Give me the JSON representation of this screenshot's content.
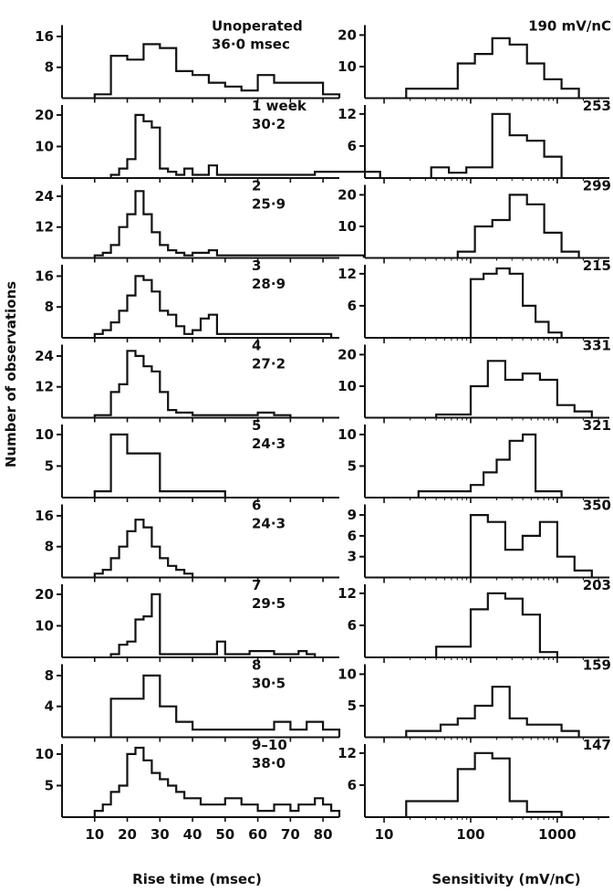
{
  "figure": {
    "ylabel": "Number of observations",
    "left_xlabel": "Rise time (msec)",
    "right_xlabel": "Sensitivity (mV/nC)",
    "left_xticks": [
      "10",
      "20",
      "30",
      "40",
      "50",
      "60",
      "70",
      "80"
    ],
    "right_xticks": [
      "10",
      "100",
      "1000"
    ]
  },
  "chart_data": [
    {
      "type": "histogram",
      "side": "left",
      "panel": 1,
      "annotation": [
        "Unoperated",
        "36·0 msec"
      ],
      "xlabel": "Rise time (msec)",
      "xlim": [
        0,
        85
      ],
      "ylim": [
        0,
        18
      ],
      "yticks": [
        "16",
        "8"
      ],
      "x": [
        10,
        15,
        20,
        25,
        30,
        35,
        40,
        45,
        50,
        55,
        60,
        65,
        70,
        75,
        80
      ],
      "values": [
        1,
        11,
        10,
        14,
        13,
        7,
        6,
        4,
        3,
        2,
        6,
        4,
        4,
        4,
        1
      ]
    },
    {
      "type": "histogram",
      "side": "left",
      "panel": 2,
      "annotation": [
        "1 week",
        "30·2"
      ],
      "xlabel": "Rise time (msec)",
      "xlim": [
        0,
        85
      ],
      "ylim": [
        0,
        22
      ],
      "yticks": [
        "20",
        "10"
      ],
      "x": [
        15,
        17.5,
        20,
        22.5,
        25,
        27.5,
        30,
        32.5,
        35,
        37.5,
        40,
        42.5,
        45,
        47.5,
        50,
        52.5,
        55,
        57.5,
        77.5
      ],
      "values": [
        1,
        3,
        6,
        20,
        18,
        16,
        3,
        2,
        1,
        3,
        1,
        1,
        4,
        1,
        1,
        1,
        1,
        1,
        2
      ]
    },
    {
      "type": "histogram",
      "side": "left",
      "panel": 3,
      "annotation": [
        "2",
        "25·9"
      ],
      "xlabel": "Rise time (msec)",
      "xlim": [
        0,
        85
      ],
      "ylim": [
        0,
        27
      ],
      "yticks": [
        "24",
        "12"
      ],
      "x": [
        10,
        12.5,
        15,
        17.5,
        20,
        22.5,
        25,
        27.5,
        30,
        32.5,
        35,
        37.5,
        40,
        42.5,
        45,
        47.5,
        70
      ],
      "values": [
        1,
        2,
        5,
        12,
        17,
        26,
        17,
        10,
        5,
        3,
        2,
        1,
        2,
        2,
        3,
        1,
        1
      ]
    },
    {
      "type": "histogram",
      "side": "left",
      "panel": 4,
      "annotation": [
        "3",
        "28·9"
      ],
      "xlabel": "Rise time (msec)",
      "xlim": [
        0,
        85
      ],
      "ylim": [
        0,
        18
      ],
      "yticks": [
        "16",
        "8"
      ],
      "x": [
        10,
        12.5,
        15,
        17.5,
        20,
        22.5,
        25,
        27.5,
        30,
        32.5,
        35,
        37.5,
        40,
        42.5,
        45,
        47.5,
        65
      ],
      "values": [
        1,
        2,
        4,
        7,
        11,
        16,
        15,
        12,
        7,
        6,
        3,
        1,
        2,
        5,
        6,
        1,
        1
      ]
    },
    {
      "type": "histogram",
      "side": "left",
      "panel": 5,
      "annotation": [
        "4",
        "27·2"
      ],
      "xlabel": "Rise time (msec)",
      "xlim": [
        0,
        85
      ],
      "ylim": [
        0,
        27
      ],
      "yticks": [
        "24",
        "12"
      ],
      "x": [
        10,
        15,
        17.5,
        20,
        22.5,
        25,
        27.5,
        30,
        32.5,
        35,
        40,
        45,
        50,
        55,
        60,
        65
      ],
      "values": [
        1,
        10,
        13,
        26,
        24,
        20,
        18,
        10,
        3,
        2,
        1,
        1,
        1,
        1,
        2,
        1
      ]
    },
    {
      "type": "histogram",
      "side": "left",
      "panel": 6,
      "annotation": [
        "5",
        "24·3"
      ],
      "xlabel": "Rise time (msec)",
      "xlim": [
        0,
        85
      ],
      "ylim": [
        0,
        11
      ],
      "yticks": [
        "10",
        "5"
      ],
      "x": [
        10,
        15,
        20,
        25,
        30,
        35,
        40,
        45
      ],
      "values": [
        1,
        10,
        7,
        7,
        1,
        1,
        1,
        1
      ]
    },
    {
      "type": "histogram",
      "side": "left",
      "panel": 7,
      "annotation": [
        "6",
        "24·3"
      ],
      "xlabel": "Rise time (msec)",
      "xlim": [
        0,
        85
      ],
      "ylim": [
        0,
        18
      ],
      "yticks": [
        "16",
        "8"
      ],
      "x": [
        10,
        12.5,
        15,
        17.5,
        20,
        22.5,
        25,
        27.5,
        30,
        32.5,
        35,
        37.5
      ],
      "values": [
        1,
        2,
        5,
        8,
        12,
        15,
        13,
        8,
        5,
        3,
        2,
        1
      ]
    },
    {
      "type": "histogram",
      "side": "left",
      "panel": 8,
      "annotation": [
        "7",
        "29·5"
      ],
      "xlabel": "Rise time (msec)",
      "xlim": [
        0,
        85
      ],
      "ylim": [
        0,
        22
      ],
      "yticks": [
        "20",
        "10"
      ],
      "x": [
        15,
        17.5,
        20,
        22.5,
        25,
        27.5,
        30,
        35,
        40,
        45,
        47.5,
        50,
        55,
        57.5,
        60,
        65,
        70,
        72.5,
        75
      ],
      "values": [
        1,
        4,
        5,
        12,
        13,
        20,
        1,
        1,
        1,
        1,
        5,
        1,
        1,
        2,
        2,
        1,
        1,
        2,
        1
      ]
    },
    {
      "type": "histogram",
      "side": "left",
      "panel": 9,
      "annotation": [
        "8",
        "30·5"
      ],
      "xlabel": "Rise time (msec)",
      "xlim": [
        0,
        85
      ],
      "ylim": [
        0,
        9
      ],
      "yticks": [
        "8",
        "4"
      ],
      "x": [
        15,
        20,
        25,
        30,
        35,
        40,
        45,
        50,
        55,
        60,
        65,
        70,
        75,
        80
      ],
      "values": [
        5,
        5,
        8,
        4,
        2,
        1,
        1,
        1,
        1,
        1,
        2,
        1,
        2,
        1
      ]
    },
    {
      "type": "histogram",
      "side": "left",
      "panel": 10,
      "annotation": [
        "9–10",
        "38·0"
      ],
      "xlabel": "Rise time (msec)",
      "xlim": [
        0,
        85
      ],
      "ylim": [
        0,
        11
      ],
      "yticks": [
        "10",
        "5"
      ],
      "x": [
        10,
        12.5,
        15,
        17.5,
        20,
        22.5,
        25,
        27.5,
        30,
        32.5,
        35,
        37.5,
        40,
        42.5,
        45,
        47.5,
        50,
        52.5,
        55,
        57.5,
        60,
        62.5,
        65,
        67.5,
        70,
        72.5,
        75,
        77.5,
        80,
        82.5
      ],
      "values": [
        1,
        2,
        4,
        5,
        10,
        11,
        9,
        7,
        6,
        5,
        4,
        3,
        3,
        2,
        2,
        2,
        3,
        3,
        2,
        2,
        1,
        1,
        2,
        2,
        1,
        2,
        2,
        3,
        2,
        1
      ]
    },
    {
      "type": "histogram",
      "side": "right",
      "panel": 1,
      "annotation": [
        "190 mV/nC"
      ],
      "xlabel": "Sensitivity (mV/nC)",
      "xscale": "log",
      "xlim": [
        6,
        4000
      ],
      "ylim": [
        0,
        22
      ],
      "yticks": [
        "20",
        "10"
      ],
      "x": [
        18,
        71,
        112,
        178,
        282,
        447,
        708,
        1122
      ],
      "values": [
        3,
        11,
        14,
        19,
        17,
        11,
        6,
        3
      ]
    },
    {
      "type": "histogram",
      "side": "right",
      "panel": 2,
      "annotation": [
        "253"
      ],
      "xlabel": "Sensitivity (mV/nC)",
      "xscale": "log",
      "xlim": [
        6,
        4000
      ],
      "ylim": [
        0,
        13
      ],
      "yticks": [
        "12",
        "6"
      ],
      "x": [
        35,
        56,
        89,
        178,
        282,
        447,
        708
      ],
      "values": [
        2,
        1,
        2,
        12,
        8,
        7,
        4
      ]
    },
    {
      "type": "histogram",
      "side": "right",
      "panel": 3,
      "annotation": [
        "299"
      ],
      "xlabel": "Sensitivity (mV/nC)",
      "xscale": "log",
      "xlim": [
        6,
        4000
      ],
      "ylim": [
        0,
        22
      ],
      "yticks": [
        "20",
        "10"
      ],
      "x": [
        71,
        112,
        178,
        282,
        447,
        708,
        1122
      ],
      "values": [
        2,
        10,
        12,
        20,
        17,
        8,
        2
      ]
    },
    {
      "type": "histogram",
      "side": "right",
      "panel": 4,
      "annotation": [
        "215"
      ],
      "xlabel": "Sensitivity (mV/nC)",
      "xscale": "log",
      "xlim": [
        6,
        4000
      ],
      "ylim": [
        0,
        13
      ],
      "yticks": [
        "12",
        "6"
      ],
      "x": [
        100,
        141,
        200,
        282,
        400,
        562,
        794
      ],
      "values": [
        11,
        12,
        13,
        12,
        6,
        3,
        1
      ]
    },
    {
      "type": "histogram",
      "side": "right",
      "panel": 5,
      "annotation": [
        "331"
      ],
      "xlabel": "Sensitivity (mV/nC)",
      "xscale": "log",
      "xlim": [
        6,
        4000
      ],
      "ylim": [
        0,
        22
      ],
      "yticks": [
        "20",
        "10"
      ],
      "x": [
        40,
        63,
        100,
        158,
        251,
        398,
        631,
        1000,
        1585
      ],
      "values": [
        1,
        1,
        10,
        18,
        12,
        14,
        12,
        4,
        2
      ]
    },
    {
      "type": "histogram",
      "side": "right",
      "panel": 6,
      "annotation": [
        "321"
      ],
      "xlabel": "Sensitivity (mV/nC)",
      "xscale": "log",
      "xlim": [
        6,
        4000
      ],
      "ylim": [
        0,
        11
      ],
      "yticks": [
        "10",
        "5"
      ],
      "x": [
        25,
        40,
        100,
        141,
        200,
        282,
        400,
        562,
        794
      ],
      "values": [
        1,
        1,
        2,
        4,
        6,
        9,
        10,
        1,
        1
      ]
    },
    {
      "type": "histogram",
      "side": "right",
      "panel": 7,
      "annotation": [
        "350"
      ],
      "xlabel": "Sensitivity (mV/nC)",
      "xscale": "log",
      "xlim": [
        6,
        4000
      ],
      "ylim": [
        0,
        10
      ],
      "yticks": [
        "9",
        "6",
        "3"
      ],
      "x": [
        100,
        158,
        251,
        398,
        631,
        1000,
        1585
      ],
      "values": [
        9,
        8,
        4,
        6,
        8,
        3,
        1
      ]
    },
    {
      "type": "histogram",
      "side": "right",
      "panel": 8,
      "annotation": [
        "203"
      ],
      "xlabel": "Sensitivity (mV/nC)",
      "xscale": "log",
      "xlim": [
        6,
        4000
      ],
      "ylim": [
        0,
        13
      ],
      "yticks": [
        "12",
        "6"
      ],
      "x": [
        40,
        100,
        158,
        251,
        398,
        631
      ],
      "values": [
        2,
        9,
        12,
        11,
        8,
        1
      ]
    },
    {
      "type": "histogram",
      "side": "right",
      "panel": 9,
      "annotation": [
        "159"
      ],
      "xlabel": "Sensitivity (mV/nC)",
      "xscale": "log",
      "xlim": [
        6,
        4000
      ],
      "ylim": [
        0,
        11
      ],
      "yticks": [
        "10",
        "5"
      ],
      "x": [
        18,
        28,
        45,
        71,
        112,
        178,
        282,
        447,
        708,
        1122
      ],
      "values": [
        1,
        1,
        2,
        3,
        5,
        8,
        3,
        2,
        2,
        1
      ]
    },
    {
      "type": "histogram",
      "side": "right",
      "panel": 10,
      "annotation": [
        "147"
      ],
      "xlabel": "Sensitivity (mV/nC)",
      "xscale": "log",
      "xlim": [
        6,
        4000
      ],
      "ylim": [
        0,
        13
      ],
      "yticks": [
        "12",
        "6"
      ],
      "x": [
        18,
        71,
        112,
        178,
        282,
        447,
        708
      ],
      "values": [
        3,
        9,
        12,
        11,
        3,
        1,
        1
      ]
    }
  ]
}
